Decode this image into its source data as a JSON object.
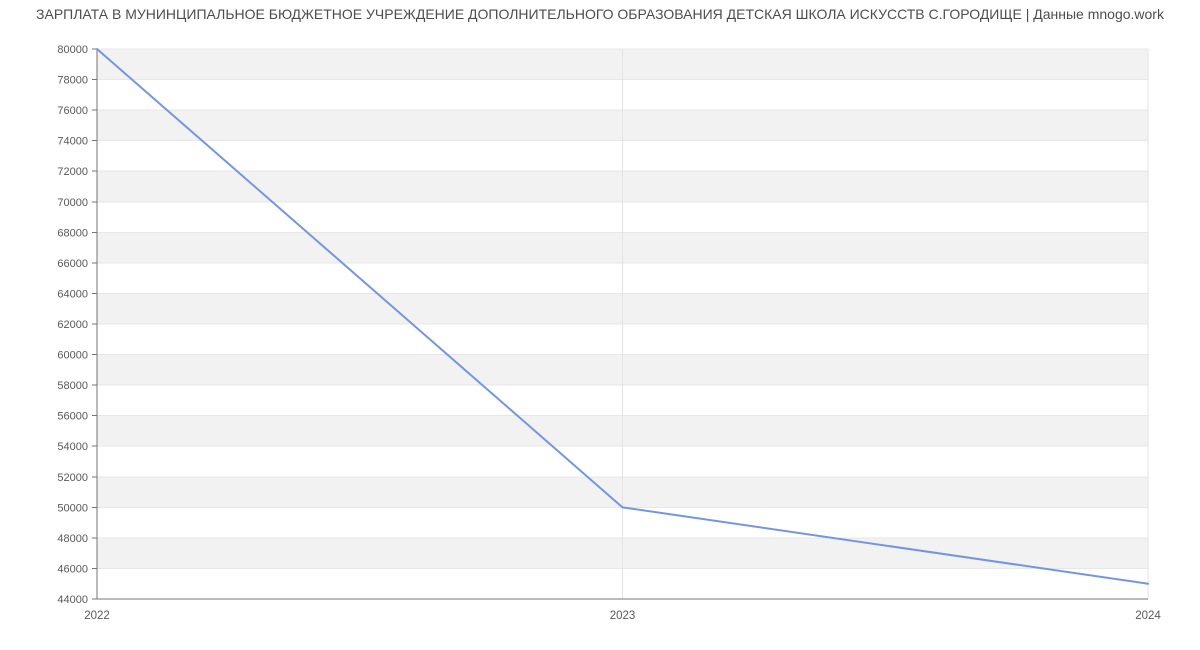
{
  "chart_data": {
    "type": "line",
    "title": "ЗАРПЛАТА В МУНИНЦИПАЛЬНОЕ БЮДЖЕТНОЕ УЧРЕЖДЕНИЕ ДОПОЛНИТЕЛЬНОГО ОБРАЗОВАНИЯ ДЕТСКАЯ ШКОЛА ИСКУССТВ С.ГОРОДИЩЕ | Данные mnogo.work",
    "x_categories": [
      "2022",
      "2023",
      "2024"
    ],
    "values": [
      80000,
      50000,
      45000
    ],
    "ylim": [
      44000,
      80000
    ],
    "ytick_step": 2000,
    "ytick_labels": [
      "80000",
      "78000",
      "76000",
      "74000",
      "72000",
      "70000",
      "68000",
      "66000",
      "64000",
      "62000",
      "60000",
      "58000",
      "56000",
      "54000",
      "52000",
      "50000",
      "48000",
      "46000",
      "44000"
    ],
    "xlabel": "",
    "ylabel": "",
    "legend": "none",
    "grid": "horizontal-zebra-bands",
    "line_width": 2
  },
  "colors": {
    "line": "#7396e3",
    "band_alt": "#f2f2f2",
    "band_base": "#ffffff",
    "gridline": "#e7e7e7",
    "vgridline": "#e3e3e3",
    "axis": "#757575",
    "tick_label": "#595959",
    "title": "#4d4d4d",
    "background": "#ffffff"
  }
}
